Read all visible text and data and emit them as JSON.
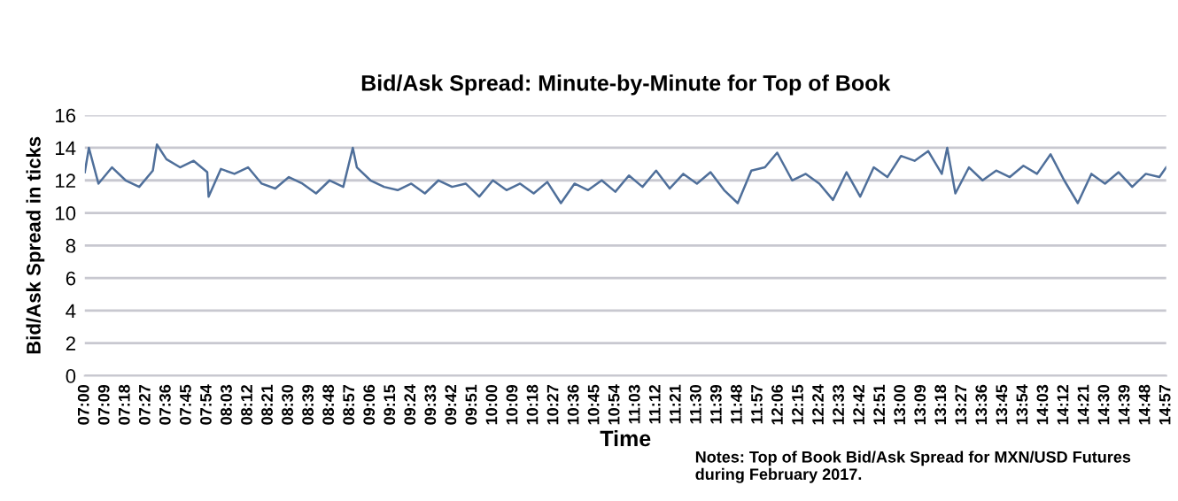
{
  "chart_data": {
    "type": "line",
    "title": "Bid/Ask Spread: Minute-by-Minute for Top of Book",
    "xlabel": "Time",
    "ylabel": "Bid/Ask Spread in ticks",
    "annotations": [
      "Notes: Top of Book Bid/Ask Spread for MXN/USD Futures during February 2017."
    ],
    "series": [
      {
        "color": "#4f6f9a",
        "x": [
          7.0,
          7.03,
          7.1,
          7.2,
          7.3,
          7.4,
          7.5,
          7.53,
          7.6,
          7.7,
          7.8,
          7.9,
          7.91,
          8.0,
          8.1,
          8.2,
          8.3,
          8.4,
          8.5,
          8.6,
          8.7,
          8.8,
          8.9,
          8.97,
          9.0,
          9.1,
          9.2,
          9.3,
          9.4,
          9.5,
          9.6,
          9.7,
          9.8,
          9.9,
          10.0,
          10.1,
          10.2,
          10.3,
          10.4,
          10.5,
          10.6,
          10.7,
          10.8,
          10.9,
          11.0,
          11.1,
          11.2,
          11.3,
          11.4,
          11.5,
          11.6,
          11.7,
          11.8,
          11.9,
          12.0,
          12.09,
          12.2,
          12.3,
          12.4,
          12.5,
          12.6,
          12.7,
          12.8,
          12.9,
          13.0,
          13.1,
          13.2,
          13.3,
          13.34,
          13.4,
          13.5,
          13.6,
          13.7,
          13.8,
          13.9,
          14.0,
          14.1,
          14.2,
          14.3,
          14.4,
          14.5,
          14.6,
          14.7,
          14.8,
          14.9,
          14.95
        ],
        "values": [
          12.5,
          14.0,
          11.8,
          12.8,
          12.0,
          11.6,
          12.6,
          14.2,
          13.3,
          12.8,
          13.2,
          12.5,
          11.0,
          12.7,
          12.4,
          12.8,
          11.8,
          11.5,
          12.2,
          11.8,
          11.2,
          12.0,
          11.6,
          14.0,
          12.8,
          12.0,
          11.6,
          11.4,
          11.8,
          11.2,
          12.0,
          11.6,
          11.8,
          11.0,
          12.0,
          11.4,
          11.8,
          11.2,
          11.9,
          10.6,
          11.8,
          11.4,
          12.0,
          11.3,
          12.3,
          11.6,
          12.6,
          11.5,
          12.4,
          11.8,
          12.5,
          11.4,
          10.6,
          12.6,
          12.8,
          13.7,
          12.0,
          12.4,
          11.8,
          10.8,
          12.5,
          11.0,
          12.8,
          12.2,
          13.5,
          13.2,
          13.8,
          12.4,
          14.0,
          11.2,
          12.8,
          12.0,
          12.6,
          12.2,
          12.9,
          12.4,
          13.6,
          12.0,
          10.6,
          12.4,
          11.8,
          12.5,
          11.6,
          12.4,
          12.2,
          12.8
        ]
      }
    ],
    "xlim": [
      7.0,
      14.95
    ],
    "ylim": [
      0,
      16
    ],
    "yticks": [
      0,
      2,
      4,
      6,
      8,
      10,
      12,
      14,
      16
    ],
    "xticks": [
      {
        "value": 7.0,
        "label": "07:00"
      },
      {
        "value": 7.15,
        "label": "07:09"
      },
      {
        "value": 7.3,
        "label": "07:18"
      },
      {
        "value": 7.45,
        "label": "07:27"
      },
      {
        "value": 7.6,
        "label": "07:36"
      },
      {
        "value": 7.75,
        "label": "07:45"
      },
      {
        "value": 7.9,
        "label": "07:54"
      },
      {
        "value": 8.05,
        "label": "08:03"
      },
      {
        "value": 8.2,
        "label": "08:12"
      },
      {
        "value": 8.35,
        "label": "08:21"
      },
      {
        "value": 8.5,
        "label": "08:30"
      },
      {
        "value": 8.65,
        "label": "08:39"
      },
      {
        "value": 8.8,
        "label": "08:48"
      },
      {
        "value": 8.95,
        "label": "08:57"
      },
      {
        "value": 9.1,
        "label": "09:06"
      },
      {
        "value": 9.25,
        "label": "09:15"
      },
      {
        "value": 9.4,
        "label": "09:24"
      },
      {
        "value": 9.55,
        "label": "09:33"
      },
      {
        "value": 9.7,
        "label": "09:42"
      },
      {
        "value": 9.85,
        "label": "09:51"
      },
      {
        "value": 10.0,
        "label": "10:00"
      },
      {
        "value": 10.15,
        "label": "10:09"
      },
      {
        "value": 10.3,
        "label": "10:18"
      },
      {
        "value": 10.45,
        "label": "10:27"
      },
      {
        "value": 10.6,
        "label": "10:36"
      },
      {
        "value": 10.75,
        "label": "10:45"
      },
      {
        "value": 10.9,
        "label": "10:54"
      },
      {
        "value": 11.05,
        "label": "11:03"
      },
      {
        "value": 11.2,
        "label": "11:12"
      },
      {
        "value": 11.35,
        "label": "11:21"
      },
      {
        "value": 11.5,
        "label": "11:30"
      },
      {
        "value": 11.65,
        "label": "11:39"
      },
      {
        "value": 11.8,
        "label": "11:48"
      },
      {
        "value": 11.95,
        "label": "11:57"
      },
      {
        "value": 12.1,
        "label": "12:06"
      },
      {
        "value": 12.25,
        "label": "12:15"
      },
      {
        "value": 12.4,
        "label": "12:24"
      },
      {
        "value": 12.55,
        "label": "12:33"
      },
      {
        "value": 12.7,
        "label": "12:42"
      },
      {
        "value": 12.85,
        "label": "12:51"
      },
      {
        "value": 13.0,
        "label": "13:00"
      },
      {
        "value": 13.15,
        "label": "13:09"
      },
      {
        "value": 13.3,
        "label": "13:18"
      },
      {
        "value": 13.45,
        "label": "13:27"
      },
      {
        "value": 13.6,
        "label": "13:36"
      },
      {
        "value": 13.75,
        "label": "13:45"
      },
      {
        "value": 13.9,
        "label": "13:54"
      },
      {
        "value": 14.05,
        "label": "14:03"
      },
      {
        "value": 14.2,
        "label": "14:12"
      },
      {
        "value": 14.35,
        "label": "14:21"
      },
      {
        "value": 14.5,
        "label": "14:30"
      },
      {
        "value": 14.65,
        "label": "14:39"
      },
      {
        "value": 14.8,
        "label": "14:48"
      },
      {
        "value": 14.95,
        "label": "14:57"
      }
    ],
    "grid": "y",
    "legend": false
  }
}
